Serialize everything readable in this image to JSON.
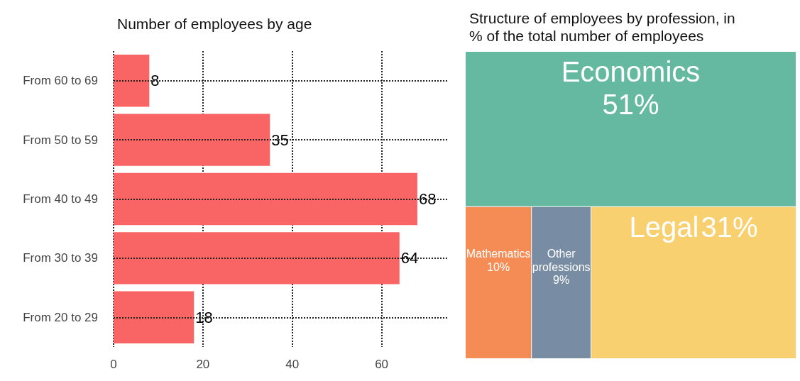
{
  "chart_data": [
    {
      "type": "bar",
      "title": "Number of employees by age",
      "orientation": "horizontal",
      "categories": [
        "From 60 to 69",
        "From 50 to 59",
        "From 40 to 49",
        "From 30 to 39",
        "From 20 to 29"
      ],
      "values": [
        8,
        35,
        68,
        64,
        18
      ],
      "color": "#f96464",
      "xlim": [
        0,
        75
      ],
      "xticks": [
        0,
        20,
        40,
        60
      ],
      "grid": true,
      "data_labels": true
    },
    {
      "type": "other",
      "title": "Structure of employees by profession, in\n% of the total number of employees",
      "categories": [
        "Economics",
        "Legal",
        "Mathematics",
        "Other professions"
      ],
      "values": [
        51,
        31,
        10,
        9
      ],
      "value_labels": [
        "51%",
        "31%",
        "10%",
        "9%"
      ],
      "colors": [
        "#66b9a1",
        "#f8d06f",
        "#f68c55",
        "#788ca3"
      ]
    }
  ]
}
